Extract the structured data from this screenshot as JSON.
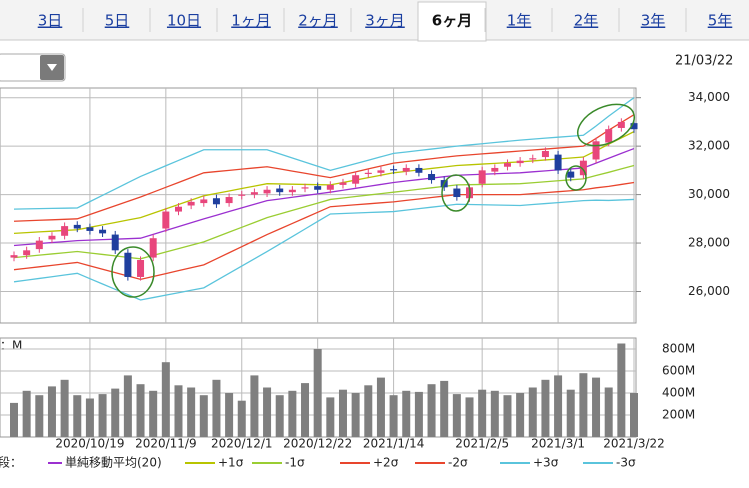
{
  "tabs": [
    {
      "label": "3日"
    },
    {
      "label": "5日"
    },
    {
      "label": "10日"
    },
    {
      "label": "1ヶ月"
    },
    {
      "label": "2ヶ月"
    },
    {
      "label": "3ヶ月"
    },
    {
      "label": "6ヶ月",
      "selected": true
    },
    {
      "label": "1年"
    },
    {
      "label": "2年"
    },
    {
      "label": "3年"
    },
    {
      "label": "5年"
    }
  ],
  "date": "21/03/22",
  "chart_data": {
    "type": "candlestick",
    "categories": [
      null,
      null,
      null,
      null,
      null,
      null,
      "2020/10/19",
      null,
      null,
      null,
      null,
      null,
      "2020/11/9",
      null,
      null,
      null,
      null,
      null,
      "2020/12/1",
      null,
      null,
      null,
      null,
      null,
      "2020/12/22",
      null,
      null,
      null,
      null,
      null,
      "2021/1/14",
      null,
      null,
      null,
      null,
      null,
      null,
      "2021/2/5",
      null,
      null,
      null,
      null,
      null,
      "2021/3/1",
      null,
      null,
      null,
      null,
      null,
      "2021/3/22"
    ],
    "open": [
      27400,
      27500,
      27750,
      28150,
      28300,
      28750,
      28650,
      28550,
      28350,
      27600,
      26600,
      27400,
      28600,
      29300,
      29550,
      29650,
      29850,
      29650,
      29950,
      30000,
      30050,
      30250,
      30100,
      30250,
      30350,
      30200,
      30400,
      30450,
      30850,
      30900,
      31050,
      30950,
      31100,
      30850,
      30600,
      30250,
      29850,
      30450,
      30950,
      31150,
      31300,
      31450,
      31550,
      31650,
      30950,
      30800,
      31450,
      32150,
      32750,
      32950
    ],
    "high": [
      27650,
      27850,
      28250,
      28450,
      28850,
      28900,
      28800,
      28700,
      28500,
      27750,
      27450,
      28350,
      29450,
      29650,
      29850,
      29950,
      30000,
      30050,
      30150,
      30250,
      30350,
      30400,
      30350,
      30450,
      30500,
      30550,
      30650,
      30950,
      31050,
      31150,
      31200,
      31250,
      31250,
      31000,
      30750,
      30400,
      30450,
      31150,
      31250,
      31450,
      31550,
      31650,
      31950,
      31800,
      31100,
      31550,
      32350,
      32850,
      33150,
      33100
    ],
    "low": [
      27250,
      27350,
      27600,
      28000,
      28150,
      28450,
      28350,
      28250,
      27550,
      26450,
      26450,
      27250,
      28450,
      29150,
      29400,
      29500,
      29450,
      29500,
      29800,
      29850,
      29900,
      29950,
      29950,
      30100,
      30050,
      30050,
      30250,
      30300,
      30700,
      30750,
      30850,
      30800,
      30750,
      30450,
      30150,
      29750,
      29700,
      30300,
      30800,
      31000,
      31150,
      31300,
      31400,
      30850,
      30550,
      30650,
      31300,
      32000,
      32600,
      32550
    ],
    "close": [
      27500,
      27700,
      28100,
      28300,
      28700,
      28600,
      28500,
      28400,
      27700,
      26600,
      27300,
      28200,
      29300,
      29500,
      29700,
      29800,
      29600,
      29900,
      30000,
      30100,
      30200,
      30100,
      30200,
      30300,
      30200,
      30400,
      30500,
      30800,
      30900,
      31000,
      31000,
      31100,
      30900,
      30600,
      30300,
      29900,
      30300,
      31000,
      31100,
      31300,
      31400,
      31500,
      31800,
      31000,
      30700,
      31400,
      32200,
      32700,
      33000,
      32700
    ],
    "up_color": "#e8467c",
    "down_color": "#1f3f9e",
    "ylim": [
      24700,
      34400
    ],
    "yticks": [
      {
        "value": 26000,
        "label": "26,000"
      },
      {
        "value": 28000,
        "label": "28,000"
      },
      {
        "value": 30000,
        "label": "30,000"
      },
      {
        "value": 32000,
        "label": "32,000"
      },
      {
        "value": 34000,
        "label": "34,000"
      }
    ],
    "grid": true,
    "legend_prefix": "段：",
    "series": [
      {
        "name": "単純移動平均(20)",
        "color": "#9b30d0",
        "values": [
          27900,
          27940,
          27980,
          28020,
          28060,
          28100,
          28120,
          28140,
          28160,
          28180,
          28200,
          28360,
          28520,
          28680,
          28840,
          29000,
          29150,
          29300,
          29450,
          29600,
          29750,
          29820,
          29890,
          29960,
          30030,
          30100,
          30180,
          30260,
          30340,
          30420,
          30500,
          30560,
          30620,
          30680,
          30740,
          30800,
          30820,
          30840,
          30860,
          30880,
          30900,
          30940,
          30980,
          31020,
          31060,
          31100,
          31300,
          31500,
          31700,
          31900
        ]
      },
      {
        "name": "+1σ",
        "color": "#b8c400",
        "values": [
          28400,
          28430,
          28460,
          28490,
          28520,
          28550,
          28650,
          28750,
          28850,
          28950,
          29050,
          29230,
          29410,
          29590,
          29770,
          29950,
          30050,
          30150,
          30250,
          30350,
          30450,
          30440,
          30430,
          30420,
          30410,
          30400,
          30500,
          30600,
          30700,
          30800,
          30900,
          30960,
          31020,
          31080,
          31140,
          31200,
          31230,
          31260,
          31290,
          31320,
          31350,
          31390,
          31430,
          31470,
          31510,
          31550,
          31810,
          32080,
          32340,
          32600
        ]
      },
      {
        "name": "-1σ",
        "color": "#9acd32",
        "values": [
          27400,
          27450,
          27500,
          27550,
          27600,
          27650,
          27590,
          27530,
          27470,
          27410,
          27350,
          27490,
          27630,
          27770,
          27910,
          28050,
          28250,
          28450,
          28650,
          28850,
          29050,
          29200,
          29350,
          29500,
          29650,
          29800,
          29860,
          29920,
          29980,
          30040,
          30100,
          30160,
          30220,
          30280,
          30340,
          30400,
          30410,
          30420,
          30430,
          30440,
          30450,
          30490,
          30530,
          30570,
          30610,
          30650,
          30790,
          30920,
          31060,
          31200
        ]
      },
      {
        "name": "+2σ",
        "color": "#e8452d",
        "values": [
          28900,
          28920,
          28940,
          28960,
          28980,
          29000,
          29180,
          29360,
          29540,
          29720,
          29900,
          30100,
          30300,
          30500,
          30700,
          30900,
          30950,
          31000,
          31050,
          31100,
          31150,
          31060,
          30970,
          30880,
          30790,
          30700,
          30820,
          30940,
          31060,
          31180,
          31300,
          31360,
          31420,
          31480,
          31540,
          31600,
          31640,
          31680,
          31720,
          31760,
          31800,
          31840,
          31880,
          31920,
          31960,
          32000,
          32320,
          32660,
          32980,
          33300
        ]
      },
      {
        "name": "-2σ",
        "color": "#e8452d",
        "values": [
          26900,
          26960,
          27020,
          27080,
          27140,
          27200,
          27060,
          26920,
          26780,
          26640,
          26500,
          26620,
          26740,
          26860,
          26980,
          27100,
          27350,
          27600,
          27850,
          28100,
          28350,
          28580,
          28810,
          29040,
          29270,
          29500,
          29540,
          29580,
          29620,
          29660,
          29700,
          29760,
          29820,
          29880,
          29940,
          30000,
          30000,
          30000,
          30000,
          30000,
          30000,
          30040,
          30080,
          30120,
          30160,
          30200,
          30280,
          30340,
          30420,
          30500
        ]
      },
      {
        "name": "+3σ",
        "color": "#5ac4dc",
        "values": [
          29400,
          29410,
          29420,
          29430,
          29440,
          29450,
          29710,
          29970,
          30230,
          30490,
          30750,
          30970,
          31190,
          31410,
          31630,
          31850,
          31850,
          31850,
          31850,
          31850,
          31850,
          31680,
          31510,
          31340,
          31170,
          31000,
          31140,
          31280,
          31420,
          31560,
          31700,
          31760,
          31820,
          31880,
          31940,
          32000,
          32050,
          32100,
          32150,
          32200,
          32250,
          32290,
          32330,
          32370,
          32410,
          32450,
          32830,
          33240,
          33620,
          34000
        ]
      },
      {
        "name": "-3σ",
        "color": "#5ac4dc",
        "values": [
          26400,
          26470,
          26540,
          26610,
          26680,
          26750,
          26530,
          26310,
          26090,
          25870,
          25650,
          25750,
          25850,
          25950,
          26050,
          26150,
          26450,
          26750,
          27050,
          27350,
          27650,
          27960,
          28270,
          28580,
          28890,
          29200,
          29220,
          29240,
          29260,
          29280,
          29300,
          29360,
          29420,
          29480,
          29540,
          29600,
          29590,
          29580,
          29570,
          29560,
          29550,
          29590,
          29630,
          29670,
          29710,
          29750,
          29770,
          29760,
          29780,
          29800
        ]
      }
    ],
    "volume": {
      "type": "bar",
      "label": "：M",
      "color": "#7f7f7f",
      "values": [
        310,
        420,
        380,
        460,
        520,
        380,
        350,
        390,
        440,
        560,
        480,
        420,
        680,
        470,
        450,
        380,
        520,
        400,
        330,
        560,
        450,
        380,
        420,
        490,
        800,
        360,
        430,
        400,
        470,
        540,
        380,
        420,
        410,
        480,
        510,
        390,
        360,
        430,
        420,
        380,
        400,
        450,
        520,
        560,
        430,
        580,
        540,
        450,
        850,
        400
      ],
      "ylim": [
        0,
        900
      ],
      "yticks": [
        {
          "value": 200,
          "label": "200M"
        },
        {
          "value": 400,
          "label": "400M"
        },
        {
          "value": 600,
          "label": "600M"
        },
        {
          "value": 800,
          "label": "800M"
        }
      ]
    }
  }
}
